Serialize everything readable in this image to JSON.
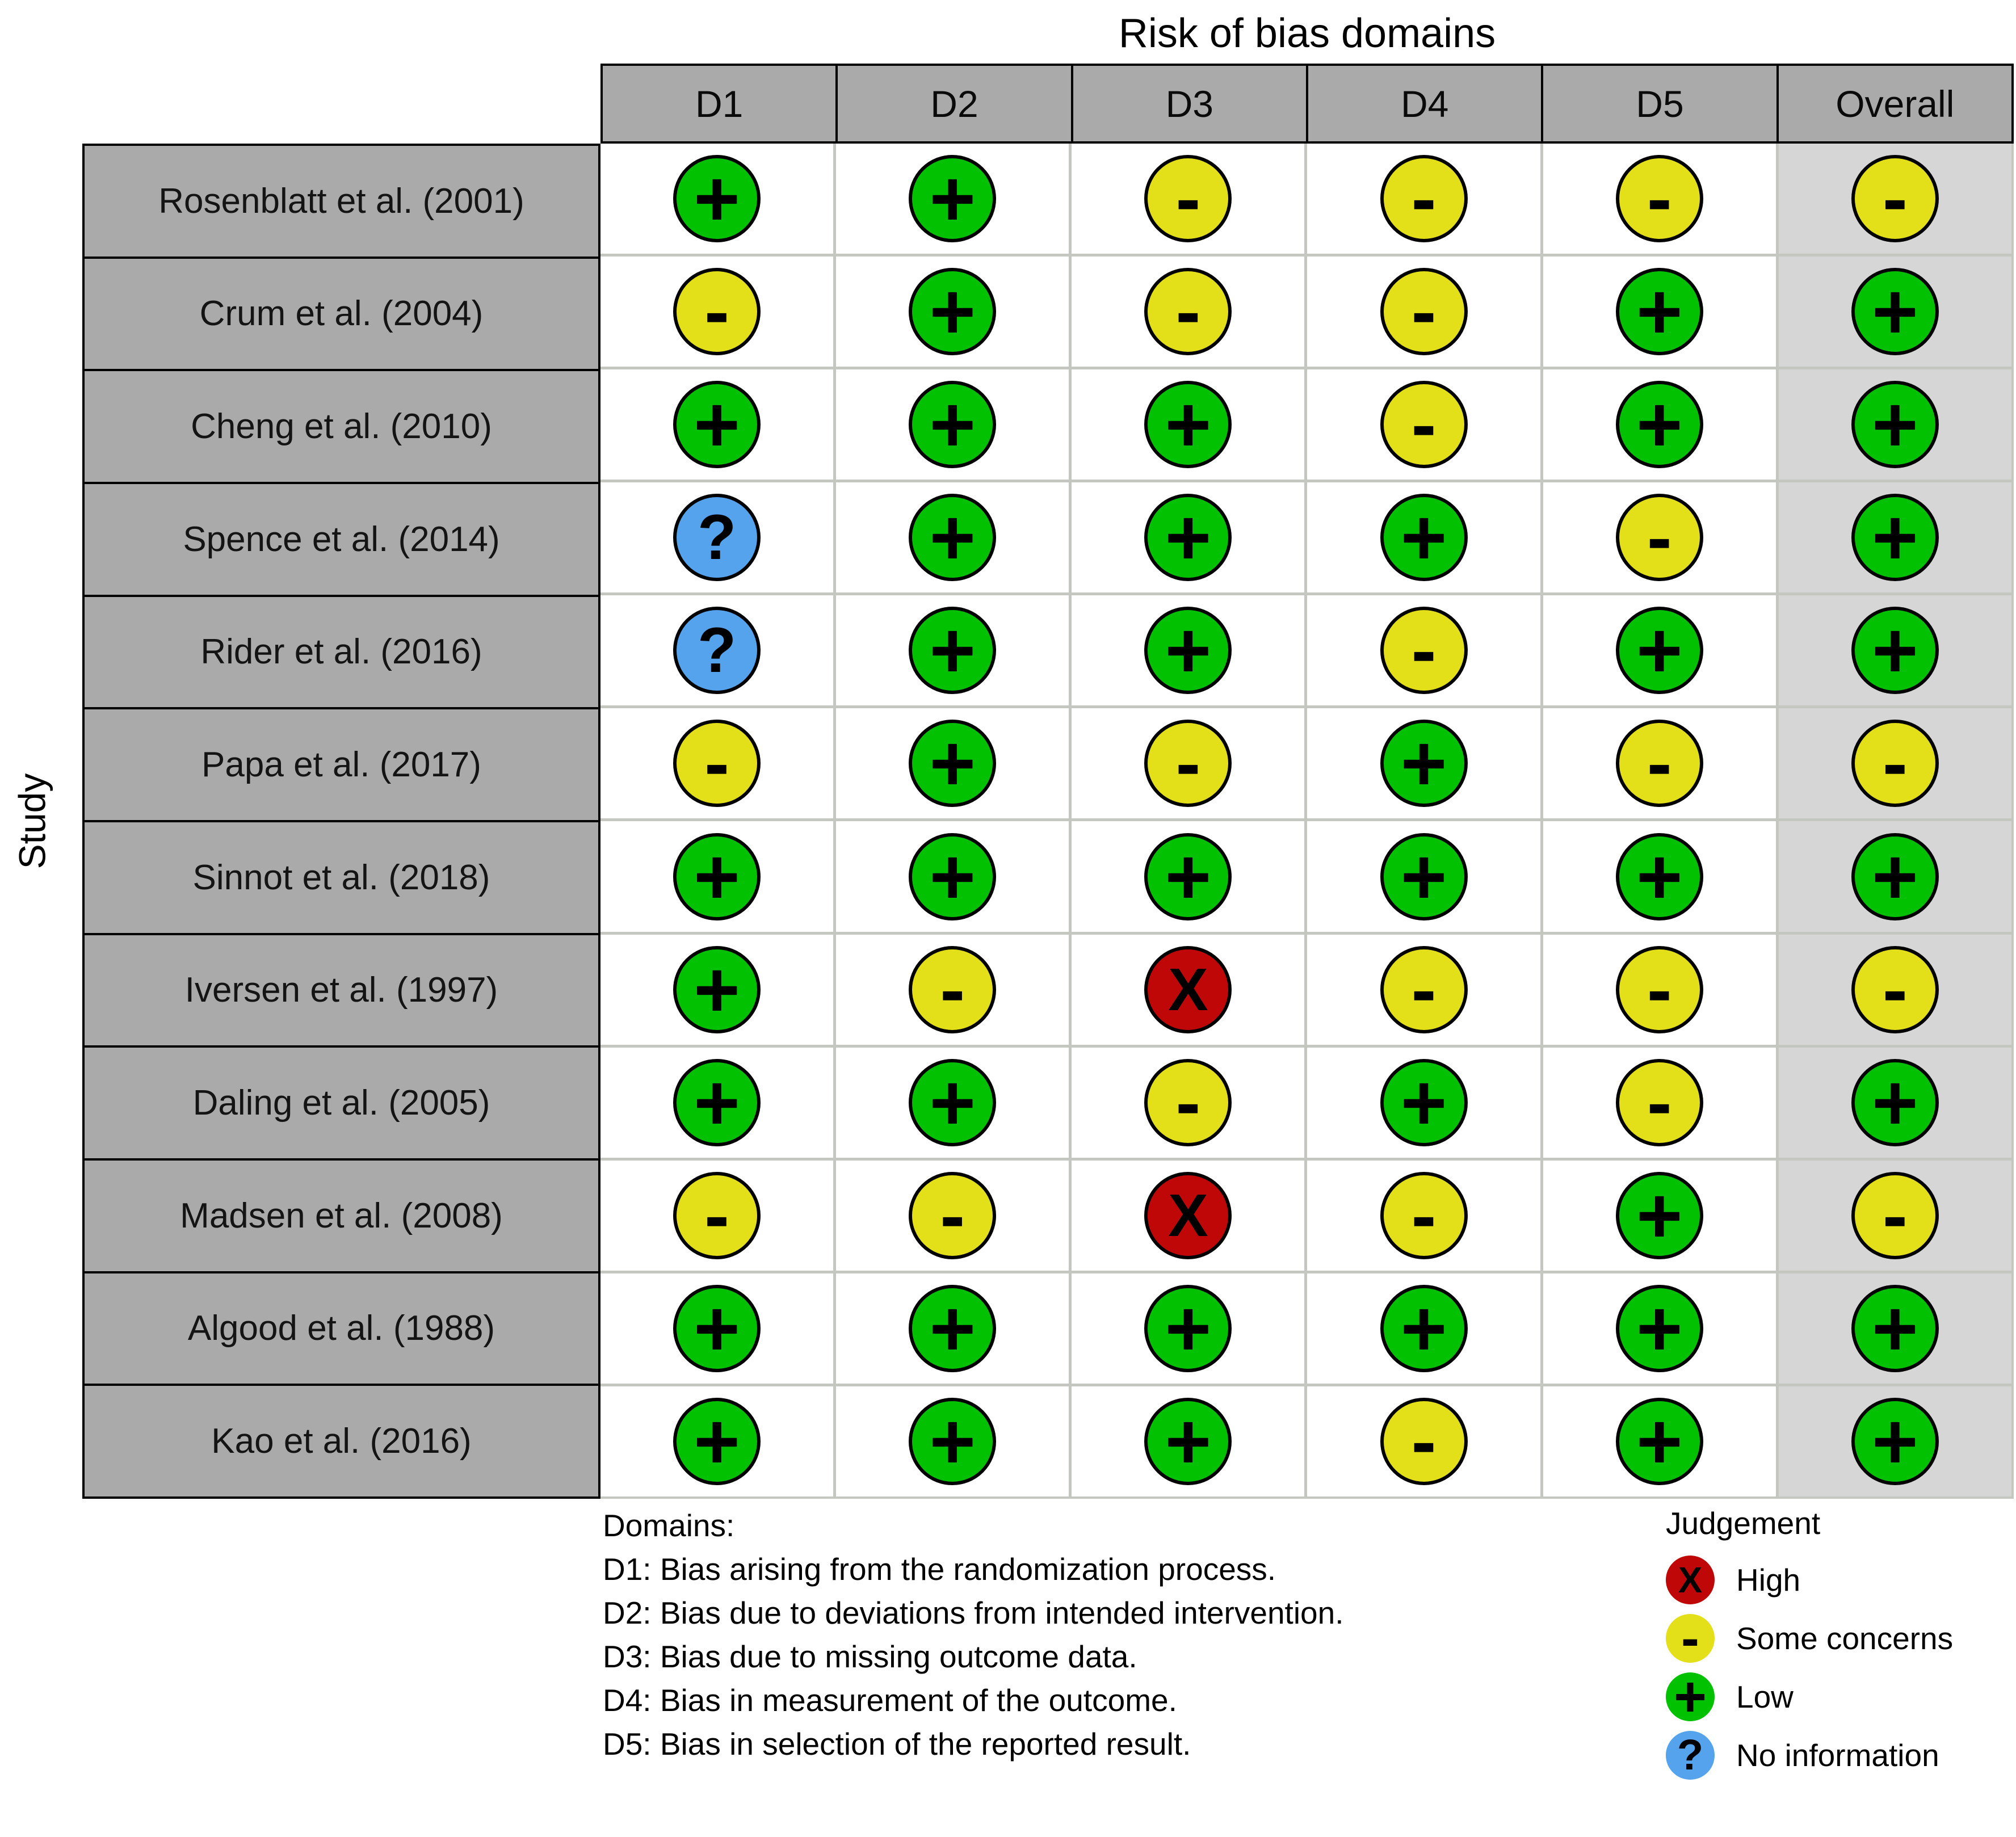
{
  "chart_data": {
    "type": "traffic-light-table",
    "title": "Risk of bias domains",
    "ylabel": "Study",
    "columns": [
      "D1",
      "D2",
      "D3",
      "D4",
      "D5",
      "Overall"
    ],
    "rows": [
      {
        "study": "Rosenblatt et al. (2001)",
        "judgments": [
          "low",
          "low",
          "concerns",
          "concerns",
          "concerns",
          "concerns"
        ]
      },
      {
        "study": "Crum et al. (2004)",
        "judgments": [
          "concerns",
          "low",
          "concerns",
          "concerns",
          "low",
          "low"
        ]
      },
      {
        "study": "Cheng et al. (2010)",
        "judgments": [
          "low",
          "low",
          "low",
          "concerns",
          "low",
          "low"
        ]
      },
      {
        "study": "Spence et al. (2014)",
        "judgments": [
          "noinfo",
          "low",
          "low",
          "low",
          "concerns",
          "low"
        ]
      },
      {
        "study": "Rider et al. (2016)",
        "judgments": [
          "noinfo",
          "low",
          "low",
          "concerns",
          "low",
          "low"
        ]
      },
      {
        "study": "Papa et al. (2017)",
        "judgments": [
          "concerns",
          "low",
          "concerns",
          "low",
          "concerns",
          "concerns"
        ]
      },
      {
        "study": "Sinnot et al. (2018)",
        "judgments": [
          "low",
          "low",
          "low",
          "low",
          "low",
          "low"
        ]
      },
      {
        "study": "Iversen et al. (1997)",
        "judgments": [
          "low",
          "concerns",
          "high",
          "concerns",
          "concerns",
          "concerns"
        ]
      },
      {
        "study": "Daling et al. (2005)",
        "judgments": [
          "low",
          "low",
          "concerns",
          "low",
          "concerns",
          "low"
        ]
      },
      {
        "study": "Madsen et al. (2008)",
        "judgments": [
          "concerns",
          "concerns",
          "high",
          "concerns",
          "low",
          "concerns"
        ]
      },
      {
        "study": "Algood et al. (1988)",
        "judgments": [
          "low",
          "low",
          "low",
          "low",
          "low",
          "low"
        ]
      },
      {
        "study": "Kao et al. (2016)",
        "judgments": [
          "low",
          "low",
          "low",
          "concerns",
          "low",
          "low"
        ]
      }
    ]
  },
  "judgment_styles": {
    "low": {
      "symbol": "+",
      "color": "#02C100",
      "label": "Low"
    },
    "concerns": {
      "symbol": "-",
      "color": "#E3DF18",
      "label": "Some concerns"
    },
    "high": {
      "symbol": "X",
      "color": "#BF0707",
      "label": "High"
    },
    "noinfo": {
      "symbol": "?",
      "color": "#54A3EC",
      "label": "No information"
    }
  },
  "palette": {
    "header_grey": "#AAAAAA",
    "overall_bg": "#D6D6D6",
    "grid_line": "#C4C6C0",
    "border": "#000000"
  },
  "legend": {
    "domains_title": "Domains:",
    "domains": [
      "D1: Bias arising from the randomization process.",
      "D2: Bias due to deviations from intended intervention.",
      "D3: Bias due to missing outcome data.",
      "D4: Bias in measurement of the outcome.",
      "D5: Bias in selection of the reported result."
    ],
    "judgement_title": "Judgement",
    "judgement_order": [
      "high",
      "concerns",
      "low",
      "noinfo"
    ]
  }
}
